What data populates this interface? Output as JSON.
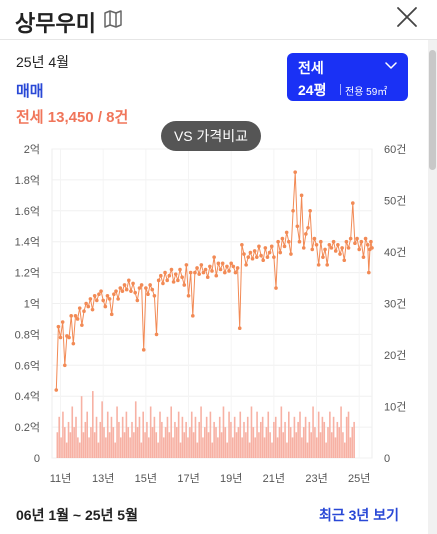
{
  "header": {
    "title": "상무우미",
    "map_icon": "map-icon",
    "close_icon": "close-icon"
  },
  "summary": {
    "period": "25년 4월",
    "trade_type": "매매",
    "price_text": "전세 13,450 / 8건"
  },
  "selector": {
    "type": "전세",
    "pyeong": "24평",
    "area": "전용 59㎡",
    "chevron_icon": "chevron-down-icon"
  },
  "compare_button": "VS 가격비교",
  "footer": {
    "range": "06년 1월 ~ 25년 5월",
    "recent_link": "최근 3년 보기"
  },
  "colors": {
    "accent_blue": "#1a31f5",
    "link_blue": "#2948d6",
    "price_orange": "#f0755a",
    "line_orange": "#f28a55",
    "bar_pink": "#f6a99a"
  },
  "chart_data": {
    "type": "line",
    "x_tick_labels": [
      "11년",
      "13년",
      "15년",
      "17년",
      "19년",
      "21년",
      "23년",
      "25년"
    ],
    "y_left_tick_labels": [
      "0",
      "0.2억",
      "0.4억",
      "0.6억",
      "0.8억",
      "1억",
      "1.2억",
      "1.4억",
      "1.6억",
      "1.8억",
      "2억"
    ],
    "y_right_tick_labels": [
      "0",
      "10건",
      "20건",
      "30건",
      "40건",
      "50건",
      "60건"
    ],
    "ylim_left": [
      0,
      2.0
    ],
    "ylim_right": [
      0,
      60
    ],
    "xlim": [
      2010.6,
      2025.6
    ],
    "grid": true,
    "series": [
      {
        "kind": "line",
        "axis": "left",
        "points": [
          [
            2010.8,
            0.44
          ],
          [
            2010.9,
            0.85
          ],
          [
            2011.0,
            0.78
          ],
          [
            2011.1,
            0.88
          ],
          [
            2011.2,
            0.6
          ],
          [
            2011.3,
            0.79
          ],
          [
            2011.4,
            0.78
          ],
          [
            2011.5,
            0.92
          ],
          [
            2011.6,
            0.74
          ],
          [
            2011.7,
            0.92
          ],
          [
            2011.8,
            0.9
          ],
          [
            2011.9,
            0.97
          ],
          [
            2012.0,
            0.86
          ],
          [
            2012.1,
            0.95
          ],
          [
            2012.2,
            1.0
          ],
          [
            2012.3,
            0.98
          ],
          [
            2012.4,
            1.03
          ],
          [
            2012.5,
            0.96
          ],
          [
            2012.6,
            1.05
          ],
          [
            2012.7,
            1.02
          ],
          [
            2012.8,
            1.06
          ],
          [
            2012.9,
            1.08
          ],
          [
            2013.0,
            1.02
          ],
          [
            2013.1,
            0.98
          ],
          [
            2013.2,
            1.05
          ],
          [
            2013.3,
            1.03
          ],
          [
            2013.4,
            0.93
          ],
          [
            2013.5,
            1.06
          ],
          [
            2013.6,
            1.08
          ],
          [
            2013.7,
            1.03
          ],
          [
            2013.8,
            1.1
          ],
          [
            2013.9,
            1.08
          ],
          [
            2014.0,
            1.12
          ],
          [
            2014.1,
            1.09
          ],
          [
            2014.2,
            1.15
          ],
          [
            2014.3,
            1.08
          ],
          [
            2014.4,
            1.13
          ],
          [
            2014.5,
            1.07
          ],
          [
            2014.6,
            1.02
          ],
          [
            2014.7,
            1.1
          ],
          [
            2014.8,
            1.12
          ],
          [
            2014.9,
            0.7
          ],
          [
            2015.0,
            1.1
          ],
          [
            2015.1,
            1.06
          ],
          [
            2015.2,
            1.12
          ],
          [
            2015.3,
            1.09
          ],
          [
            2015.4,
            1.05
          ],
          [
            2015.5,
            0.8
          ],
          [
            2015.6,
            1.15
          ],
          [
            2015.7,
            1.18
          ],
          [
            2015.8,
            1.13
          ],
          [
            2015.9,
            1.2
          ],
          [
            2016.0,
            1.15
          ],
          [
            2016.1,
            1.18
          ],
          [
            2016.2,
            1.22
          ],
          [
            2016.3,
            1.14
          ],
          [
            2016.4,
            1.19
          ],
          [
            2016.5,
            1.15
          ],
          [
            2016.6,
            1.22
          ],
          [
            2016.7,
            1.17
          ],
          [
            2016.8,
            1.12
          ],
          [
            2016.9,
            1.25
          ],
          [
            2017.0,
            1.05
          ],
          [
            2017.1,
            1.2
          ],
          [
            2017.2,
            0.92
          ],
          [
            2017.3,
            1.2
          ],
          [
            2017.4,
            1.23
          ],
          [
            2017.5,
            1.19
          ],
          [
            2017.6,
            1.25
          ],
          [
            2017.7,
            1.2
          ],
          [
            2017.8,
            1.22
          ],
          [
            2017.9,
            1.17
          ],
          [
            2018.0,
            1.24
          ],
          [
            2018.1,
            1.21
          ],
          [
            2018.2,
            1.3
          ],
          [
            2018.3,
            1.18
          ],
          [
            2018.4,
            1.26
          ],
          [
            2018.5,
            1.22
          ],
          [
            2018.6,
            1.26
          ],
          [
            2018.7,
            1.2
          ],
          [
            2018.8,
            1.24
          ],
          [
            2018.9,
            1.21
          ],
          [
            2019.0,
            1.26
          ],
          [
            2019.1,
            1.24
          ],
          [
            2019.2,
            1.2
          ],
          [
            2019.3,
            1.23
          ],
          [
            2019.4,
            0.84
          ],
          [
            2019.5,
            1.38
          ],
          [
            2019.6,
            1.32
          ],
          [
            2019.7,
            1.25
          ],
          [
            2019.8,
            1.3
          ],
          [
            2019.9,
            1.33
          ],
          [
            2020.0,
            1.29
          ],
          [
            2020.1,
            1.34
          ],
          [
            2020.2,
            1.3
          ],
          [
            2020.3,
            1.37
          ],
          [
            2020.4,
            1.31
          ],
          [
            2020.5,
            1.28
          ],
          [
            2020.6,
            1.36
          ],
          [
            2020.7,
            1.3
          ],
          [
            2020.8,
            1.33
          ],
          [
            2020.9,
            1.37
          ],
          [
            2021.0,
            1.3
          ],
          [
            2021.1,
            1.1
          ],
          [
            2021.2,
            1.4
          ],
          [
            2021.3,
            1.33
          ],
          [
            2021.4,
            1.42
          ],
          [
            2021.5,
            1.37
          ],
          [
            2021.6,
            1.46
          ],
          [
            2021.7,
            1.4
          ],
          [
            2021.8,
            1.32
          ],
          [
            2021.9,
            1.6
          ],
          [
            2022.0,
            1.85
          ],
          [
            2022.1,
            1.5
          ],
          [
            2022.2,
            1.4
          ],
          [
            2022.3,
            1.7
          ],
          [
            2022.4,
            1.36
          ],
          [
            2022.5,
            1.45
          ],
          [
            2022.6,
            1.49
          ],
          [
            2022.7,
            1.6
          ],
          [
            2022.8,
            1.35
          ],
          [
            2022.9,
            1.42
          ],
          [
            2023.0,
            1.38
          ],
          [
            2023.1,
            1.25
          ],
          [
            2023.2,
            1.4
          ],
          [
            2023.3,
            1.3
          ],
          [
            2023.4,
            1.35
          ],
          [
            2023.5,
            1.25
          ],
          [
            2023.6,
            1.38
          ],
          [
            2023.7,
            1.36
          ],
          [
            2023.8,
            1.4
          ],
          [
            2023.9,
            1.34
          ],
          [
            2024.0,
            1.38
          ],
          [
            2024.1,
            1.32
          ],
          [
            2024.2,
            1.36
          ],
          [
            2024.3,
            1.28
          ],
          [
            2024.4,
            1.4
          ],
          [
            2024.5,
            1.36
          ],
          [
            2024.6,
            1.42
          ],
          [
            2024.7,
            1.65
          ],
          [
            2024.8,
            1.39
          ],
          [
            2024.9,
            1.42
          ],
          [
            2025.0,
            1.35
          ],
          [
            2025.1,
            1.4
          ],
          [
            2025.2,
            1.3
          ],
          [
            2025.3,
            1.42
          ],
          [
            2025.4,
            1.38
          ],
          [
            2025.45,
            1.2
          ],
          [
            2025.5,
            1.35
          ],
          [
            2025.55,
            1.4
          ],
          [
            2025.6,
            1.36
          ]
        ]
      },
      {
        "kind": "bar",
        "axis": "right",
        "x_start": 2010.85,
        "x_step": 0.0875,
        "values": [
          5,
          8,
          4,
          9,
          6,
          3,
          7,
          5,
          10,
          6,
          8,
          4,
          3,
          12,
          5,
          7,
          9,
          4,
          6,
          13,
          5,
          8,
          3,
          7,
          11,
          6,
          4,
          9,
          5,
          8,
          6,
          3,
          10,
          7,
          4,
          8,
          5,
          9,
          6,
          4,
          7,
          5,
          11,
          6,
          8,
          3,
          9,
          5,
          7,
          4,
          10,
          6,
          8,
          5,
          3,
          9,
          7,
          4,
          6,
          8,
          5,
          10,
          4,
          7,
          6,
          9,
          3,
          8,
          5,
          7,
          4,
          6,
          9,
          5,
          8,
          3,
          7,
          10,
          4,
          6,
          8,
          5,
          9,
          3,
          7,
          6,
          4,
          8,
          5,
          10,
          6,
          3,
          9,
          7,
          4,
          8,
          5,
          6,
          9,
          4,
          7,
          5,
          8,
          3,
          10,
          6,
          4,
          9,
          5,
          7,
          8,
          4,
          6,
          9,
          5,
          3,
          7,
          8,
          4,
          6,
          10,
          5,
          7,
          3,
          9,
          6,
          4,
          8,
          5,
          7,
          9,
          4,
          6,
          8,
          3,
          7,
          5,
          10,
          6,
          4,
          9,
          5,
          8,
          7,
          3,
          6,
          9,
          5,
          8,
          4,
          7,
          6,
          10,
          5,
          3,
          8,
          9,
          4,
          6,
          7
        ]
      }
    ]
  }
}
